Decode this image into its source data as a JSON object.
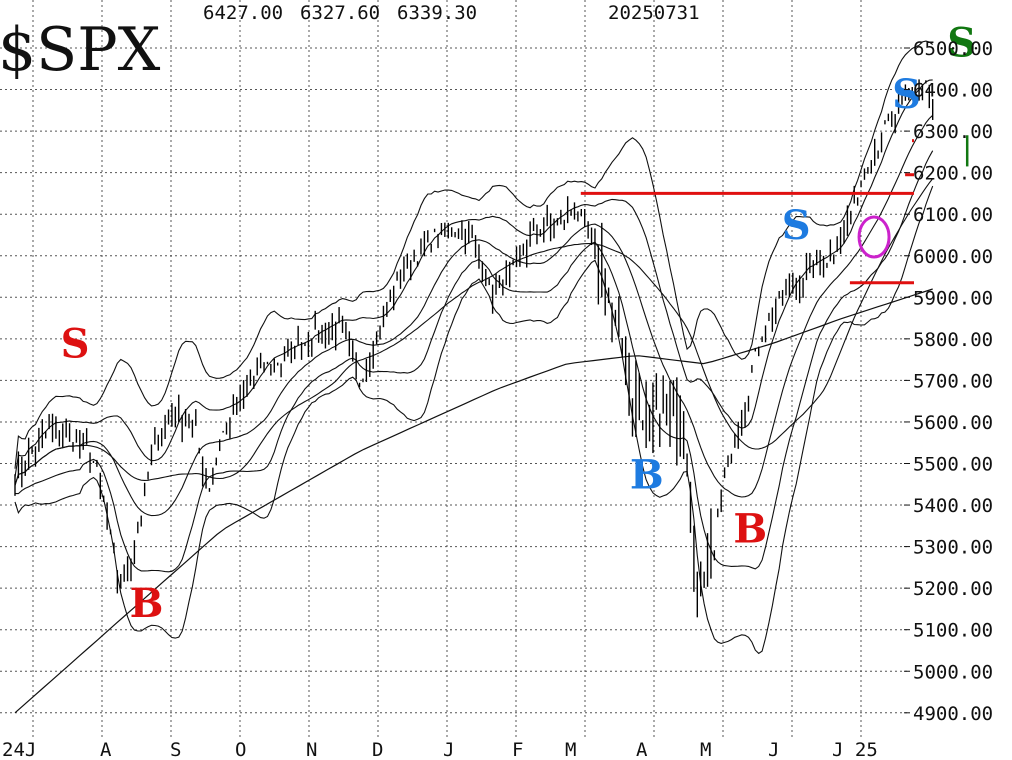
{
  "header": {
    "symbol": "$SPX",
    "high": "6427.00",
    "low": "6327.60",
    "close": "6339.30",
    "date": "20250731"
  },
  "chart_data": {
    "type": "line",
    "title": "$SPX",
    "chart_style": "daily high-low bars with moving averages and bands",
    "ylim": [
      4850,
      6550
    ],
    "y_ticks": [
      "6500.00",
      "6400.00",
      "6300.00",
      "6200.00",
      "6100.00",
      "6000.00",
      "5900.00",
      "5800.00",
      "5700.00",
      "5600.00",
      "5500.00",
      "5400.00",
      "5300.00",
      "5200.00",
      "5100.00",
      "5000.00",
      "4900.00"
    ],
    "x_ticks": [
      "24J",
      "A",
      "S",
      "O",
      "N",
      "D",
      "J",
      "F",
      "M",
      "A",
      "M",
      "J",
      "J 25"
    ],
    "grid": true,
    "price_path": [
      [
        0,
        5470
      ],
      [
        0.5,
        5580
      ],
      [
        0.8,
        5560
      ],
      [
        1.1,
        5530
      ],
      [
        1.3,
        5400
      ],
      [
        1.5,
        5200
      ],
      [
        1.7,
        5270
      ],
      [
        2.0,
        5530
      ],
      [
        2.3,
        5620
      ],
      [
        2.6,
        5590
      ],
      [
        2.8,
        5430
      ],
      [
        3.0,
        5570
      ],
      [
        3.5,
        5720
      ],
      [
        4.0,
        5760
      ],
      [
        4.3,
        5810
      ],
      [
        4.7,
        5830
      ],
      [
        5.0,
        5700
      ],
      [
        5.3,
        5830
      ],
      [
        5.6,
        5960
      ],
      [
        6.0,
        6030
      ],
      [
        6.3,
        6070
      ],
      [
        6.6,
        6050
      ],
      [
        6.9,
        5910
      ],
      [
        7.2,
        5950
      ],
      [
        7.5,
        6050
      ],
      [
        7.9,
        6080
      ],
      [
        8.1,
        6120
      ],
      [
        8.3,
        6060
      ],
      [
        8.6,
        5920
      ],
      [
        8.9,
        5700
      ],
      [
        9.1,
        5580
      ],
      [
        9.4,
        5640
      ],
      [
        9.7,
        5600
      ],
      [
        9.9,
        5150
      ],
      [
        10.1,
        5270
      ],
      [
        10.3,
        5480
      ],
      [
        10.6,
        5650
      ],
      [
        10.8,
        5810
      ],
      [
        11.2,
        5920
      ],
      [
        11.5,
        5960
      ],
      [
        11.8,
        6000
      ],
      [
        12.0,
        6050
      ],
      [
        12.3,
        6200
      ],
      [
        12.6,
        6300
      ],
      [
        12.9,
        6370
      ],
      [
        13.2,
        6420
      ],
      [
        13.3,
        6340
      ]
    ],
    "ma_200": [
      [
        0,
        4900
      ],
      [
        1.5,
        5120
      ],
      [
        3.0,
        5340
      ],
      [
        5.0,
        5530
      ],
      [
        7.0,
        5680
      ],
      [
        8.0,
        5740
      ],
      [
        9.0,
        5760
      ],
      [
        10.0,
        5740
      ],
      [
        11.0,
        5790
      ],
      [
        12.0,
        5850
      ],
      [
        13.3,
        5920
      ]
    ],
    "horizontal_lines": [
      {
        "from_x": 8.2,
        "to_x": 13.5,
        "y": 6150,
        "color": "#e01010"
      },
      {
        "from_x": 12.1,
        "to_x": 13.5,
        "y": 5935,
        "color": "#e01010"
      },
      {
        "from_x": 12.9,
        "to_x": 13.4,
        "y": 6195,
        "color": "#e01010"
      },
      {
        "from_x": 13.0,
        "to_x": 13.5,
        "y": 6277,
        "color": "#e01010"
      }
    ],
    "annotations": [
      {
        "text": "S",
        "x": 0.85,
        "y": 5755,
        "color": "#dd1111"
      },
      {
        "text": "B",
        "x": 1.85,
        "y": 5130,
        "color": "#dd1111"
      },
      {
        "text": "B",
        "x": 9.1,
        "y": 5440,
        "color": "#1e7be0"
      },
      {
        "text": "B",
        "x": 10.6,
        "y": 5310,
        "color": "#dd1111"
      },
      {
        "text": "S",
        "x": 11.3,
        "y": 6040,
        "color": "#1e7be0"
      },
      {
        "text": "S",
        "x": 12.9,
        "y": 6355,
        "color": "#1e7be0"
      },
      {
        "text": "S",
        "x": 13.7,
        "y": 6480,
        "color": "#117711"
      }
    ],
    "circle_marker": {
      "x": 12.45,
      "y": 6045,
      "color": "#cc22cc"
    },
    "green_marker": {
      "x": 13.8,
      "y_top": 6290,
      "y_bottom": 6215,
      "color": "#117711"
    }
  }
}
